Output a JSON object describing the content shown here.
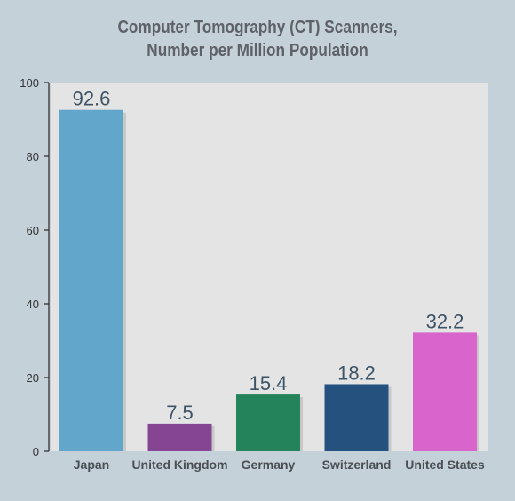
{
  "chart_data": {
    "type": "bar",
    "title_lines": [
      "Computer Tomography (CT) Scanners,",
      "Number per Million Population"
    ],
    "categories": [
      "Japan",
      "United Kingdom",
      "Germany",
      "Switzerland",
      "United States"
    ],
    "values": [
      92.6,
      7.5,
      15.4,
      18.2,
      32.2
    ],
    "value_labels": [
      "92.6",
      "7.5",
      "15.4",
      "18.2",
      "32.2"
    ],
    "bar_colors": [
      "#63a6cb",
      "#864592",
      "#24835a",
      "#25517f",
      "#d765cc"
    ],
    "ylim": [
      0,
      100
    ],
    "yticks": [
      0,
      20,
      40,
      60,
      80,
      100
    ],
    "plot_background": "#e4e4e4",
    "grid": false,
    "legend": "none"
  }
}
